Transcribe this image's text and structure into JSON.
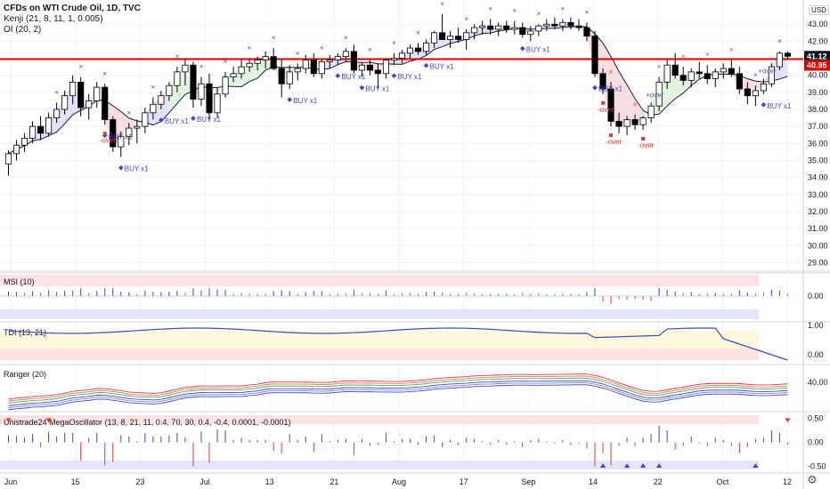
{
  "header": {
    "title": "CFDs on WTI Crude Oil, 1D, TVC",
    "indicators": [
      "Kenji (21, 8, 11, 1, 0.005)",
      "OI (20, 2)"
    ],
    "currency": "USD"
  },
  "chart_data": [
    {
      "type": "candlestick",
      "title": "CFDs on WTI Crude Oil, 1D, TVC",
      "x_ticks": [
        "Jun",
        "15",
        "23",
        "Jul",
        "13",
        "21",
        "Aug",
        "17",
        "Sep",
        "14",
        "22",
        "Oct",
        "12"
      ],
      "y_ticks": [
        "29.00",
        "30.00",
        "31.00",
        "32.00",
        "33.00",
        "34.00",
        "35.00",
        "36.00",
        "37.00",
        "38.00",
        "39.00",
        "40.00",
        "41.00",
        "42.00",
        "43.00"
      ],
      "ylim": [
        28.5,
        43.9
      ],
      "last_price": "41.12",
      "red_line": "40.95",
      "ohlc": [
        [
          34.8,
          35.6,
          34.1,
          35.4
        ],
        [
          35.4,
          36.2,
          35.0,
          35.9
        ],
        [
          35.9,
          36.6,
          35.5,
          36.3
        ],
        [
          36.3,
          37.3,
          36.0,
          37.0
        ],
        [
          37.0,
          37.6,
          36.2,
          36.6
        ],
        [
          36.6,
          37.8,
          36.4,
          37.5
        ],
        [
          37.5,
          38.4,
          37.2,
          38.0
        ],
        [
          38.0,
          39.1,
          37.7,
          38.8
        ],
        [
          38.8,
          40.0,
          38.3,
          39.6
        ],
        [
          39.6,
          39.9,
          37.6,
          38.1
        ],
        [
          38.1,
          38.9,
          37.4,
          38.5
        ],
        [
          38.5,
          39.6,
          38.1,
          39.3
        ],
        [
          39.3,
          39.5,
          37.1,
          37.4
        ],
        [
          37.4,
          37.6,
          35.5,
          35.8
        ],
        [
          35.8,
          36.7,
          35.2,
          36.4
        ],
        [
          36.4,
          37.2,
          35.9,
          36.9
        ],
        [
          36.9,
          37.4,
          36.0,
          37.0
        ],
        [
          37.0,
          38.1,
          36.6,
          37.8
        ],
        [
          37.8,
          38.7,
          37.4,
          38.3
        ],
        [
          38.3,
          39.1,
          38.0,
          38.8
        ],
        [
          38.8,
          39.6,
          38.5,
          39.4
        ],
        [
          39.4,
          40.5,
          39.0,
          40.2
        ],
        [
          40.2,
          41.0,
          39.4,
          40.6
        ],
        [
          40.6,
          40.8,
          38.1,
          38.6
        ],
        [
          38.6,
          39.9,
          38.2,
          39.5
        ],
        [
          39.5,
          40.1,
          37.3,
          37.8
        ],
        [
          37.8,
          39.3,
          37.5,
          38.9
        ],
        [
          38.9,
          40.2,
          38.7,
          39.9
        ],
        [
          39.9,
          40.5,
          39.6,
          40.1
        ],
        [
          40.1,
          40.9,
          39.8,
          40.5
        ],
        [
          40.5,
          41.0,
          40.2,
          40.7
        ],
        [
          40.7,
          41.1,
          40.3,
          40.9
        ],
        [
          40.9,
          41.4,
          40.4,
          41.1
        ],
        [
          41.1,
          41.6,
          40.3,
          40.4
        ],
        [
          40.4,
          40.9,
          38.7,
          39.5
        ],
        [
          39.5,
          40.6,
          39.2,
          40.2
        ],
        [
          40.2,
          40.7,
          39.7,
          40.4
        ],
        [
          40.4,
          41.2,
          40.1,
          40.9
        ],
        [
          40.9,
          41.3,
          39.9,
          40.1
        ],
        [
          40.1,
          41.0,
          39.8,
          40.8
        ],
        [
          40.8,
          41.2,
          40.4,
          40.9
        ],
        [
          40.9,
          41.3,
          40.6,
          41.1
        ],
        [
          41.1,
          41.6,
          40.8,
          41.4
        ],
        [
          41.4,
          41.8,
          40.1,
          40.3
        ],
        [
          40.3,
          40.8,
          39.9,
          40.6
        ],
        [
          40.6,
          40.9,
          40.0,
          40.3
        ],
        [
          40.3,
          40.7,
          39.2,
          40.1
        ],
        [
          40.1,
          41.0,
          39.8,
          40.9
        ],
        [
          40.9,
          41.3,
          40.6,
          41.0
        ],
        [
          41.0,
          41.5,
          40.7,
          41.3
        ],
        [
          41.3,
          41.8,
          41.0,
          41.6
        ],
        [
          41.6,
          41.9,
          41.2,
          41.4
        ],
        [
          41.4,
          42.1,
          41.2,
          41.9
        ],
        [
          41.9,
          42.6,
          41.6,
          42.5
        ],
        [
          42.5,
          43.6,
          42.2,
          42.1
        ],
        [
          42.1,
          42.6,
          41.6,
          42.3
        ],
        [
          42.3,
          42.8,
          41.9,
          42.1
        ],
        [
          42.1,
          42.7,
          41.5,
          42.5
        ],
        [
          42.5,
          43.0,
          42.1,
          42.8
        ],
        [
          42.8,
          43.2,
          42.4,
          42.9
        ],
        [
          42.9,
          43.3,
          42.4,
          42.7
        ],
        [
          42.7,
          43.1,
          42.3,
          42.9
        ],
        [
          42.9,
          43.2,
          42.5,
          42.7
        ],
        [
          42.7,
          43.2,
          42.4,
          42.8
        ],
        [
          42.8,
          43.1,
          42.2,
          42.4
        ],
        [
          42.4,
          42.9,
          42.0,
          42.6
        ],
        [
          42.6,
          43.0,
          42.3,
          42.9
        ],
        [
          42.9,
          43.3,
          42.6,
          43.0
        ],
        [
          43.0,
          43.4,
          42.7,
          42.9
        ],
        [
          42.9,
          43.3,
          42.6,
          43.1
        ],
        [
          43.1,
          43.4,
          42.7,
          42.9
        ],
        [
          42.9,
          43.3,
          42.6,
          42.8
        ],
        [
          42.8,
          43.1,
          42.0,
          42.3
        ],
        [
          42.3,
          42.6,
          39.9,
          40.1
        ],
        [
          40.1,
          40.4,
          38.9,
          39.2
        ],
        [
          39.2,
          39.6,
          37.0,
          37.3
        ],
        [
          37.3,
          37.8,
          36.6,
          37.0
        ],
        [
          37.0,
          37.6,
          36.5,
          37.4
        ],
        [
          37.4,
          37.7,
          36.8,
          37.1
        ],
        [
          37.1,
          37.6,
          36.8,
          37.5
        ],
        [
          37.5,
          38.4,
          37.2,
          38.2
        ],
        [
          38.2,
          39.9,
          37.9,
          39.6
        ],
        [
          39.6,
          40.9,
          39.2,
          40.6
        ],
        [
          40.6,
          41.3,
          39.8,
          40.0
        ],
        [
          40.0,
          40.5,
          39.4,
          39.7
        ],
        [
          39.7,
          40.4,
          39.3,
          40.2
        ],
        [
          40.2,
          40.8,
          39.8,
          40.1
        ],
        [
          40.1,
          40.6,
          39.5,
          39.8
        ],
        [
          39.8,
          40.4,
          39.3,
          40.2
        ],
        [
          40.2,
          40.7,
          39.8,
          40.4
        ],
        [
          40.4,
          40.9,
          39.9,
          40.1
        ],
        [
          40.1,
          40.5,
          38.9,
          39.2
        ],
        [
          39.2,
          39.6,
          38.3,
          38.8
        ],
        [
          38.8,
          39.4,
          38.2,
          39.1
        ],
        [
          39.1,
          39.8,
          38.9,
          39.5
        ],
        [
          39.5,
          40.7,
          39.3,
          40.5
        ],
        [
          40.5,
          41.4,
          40.3,
          41.3
        ],
        [
          41.3,
          41.4,
          40.9,
          41.12
        ]
      ],
      "markers": {
        "buy_labels": [
          "BUY x1",
          "BUY x1",
          "BUY x1",
          "BUY x1",
          "BUY x1",
          "BUY x1",
          "BUY x1",
          "BUY x1",
          "BUY x1",
          "BUY x1",
          "BUY x1",
          "BUY x1"
        ],
        "over_labels": [
          "-over",
          "-over",
          "-over",
          "-over",
          "+over",
          "+over"
        ]
      }
    },
    {
      "type": "bar",
      "title": "MSI (10)",
      "y_ticks": [
        "0.00"
      ],
      "colors": {
        "up": "#3f48cc",
        "neutral": "#4caf50",
        "down": "#e53935"
      }
    },
    {
      "type": "line",
      "title": "TDI (13, 21)",
      "y_ticks": [
        "1.00",
        "0.00"
      ]
    },
    {
      "type": "line",
      "title": "Ranger (20)",
      "y_ticks": [
        "40.00"
      ]
    },
    {
      "type": "bar",
      "title": "Unistrade24 MegaOscillator (13, 8, 21, 11, 0.4, 70, 30, 0.4, -0.4, 0.0001, -0.0001)",
      "y_ticks": [
        "0.50",
        "0.00",
        "-0.50"
      ],
      "ylim": [
        -0.6,
        0.55
      ]
    }
  ],
  "colors": {
    "bull": "#ffffff",
    "bear": "#000000",
    "wick": "#000000",
    "kenji_band": "#d9dcf7",
    "kenji_green": "#d8f2d8",
    "kenji_red": "#f6d6d6",
    "buy": "#3f48cc",
    "sell": "#e53935",
    "red_line": "#e00000",
    "last_tag": "#131722"
  },
  "ui": {
    "settings_icon": "gear-icon"
  }
}
